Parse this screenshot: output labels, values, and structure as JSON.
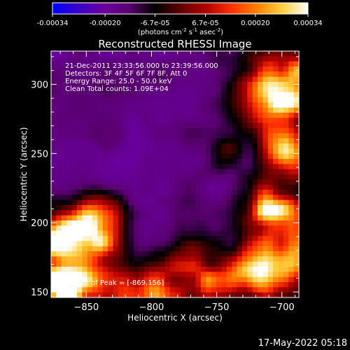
{
  "colorbar": {
    "tick_labels": [
      "-0.00034",
      "-0.00020",
      "-6.7e-05",
      "6.7e-05",
      "0.00020",
      "0.00034"
    ],
    "tick_values": [
      -0.00034,
      -0.0002,
      -6.7e-05,
      6.7e-05,
      0.0002,
      0.00034
    ],
    "range": [
      -0.00034,
      0.00034
    ],
    "unit_prefix": "(photons cm",
    "unit_exp1": "-2",
    "unit_mid": " s",
    "unit_exp2": "-1",
    "unit_suffix": " asec",
    "unit_exp3": "-2",
    "unit_close": ")",
    "colors": [
      "#0000ff",
      "#3a00c8",
      "#6a00a0",
      "#5a0070",
      "#000000",
      "#600000",
      "#b00000",
      "#ff3000",
      "#ff8000",
      "#ffd040",
      "#ffffff"
    ]
  },
  "chart_data": {
    "type": "heatmap",
    "title": "Reconstructed RHESSI Image",
    "xlabel": "Heliocentric X (arcsec)",
    "ylabel": "Heliocentric Y (arcsec)",
    "xlim": [
      -877,
      -687
    ],
    "ylim": [
      146,
      324
    ],
    "xticks": [
      -850,
      -800,
      -750,
      -700
    ],
    "yticks": [
      150,
      200,
      250,
      300
    ],
    "xtick_labels": [
      "−850",
      "−800",
      "−750",
      "−700"
    ],
    "ytick_labels": [
      "150",
      "200",
      "250",
      "300"
    ],
    "info_lines": [
      "21-Dec-2011 23:33:56.000 to 23:39:56.000",
      "Detectors: 3F 4F 5F 6F 7F 8F, Att 0",
      "Energy Range: 25.0 - 50.0 keV",
      "Clean     Total counts: 1.09E+04"
    ],
    "peak_label": "Position of Peak = [-869,156]",
    "peak_position": [
      -869,
      156
    ],
    "grid": false
  },
  "footer": {
    "timestamp": "17-May-2022 05:18"
  }
}
